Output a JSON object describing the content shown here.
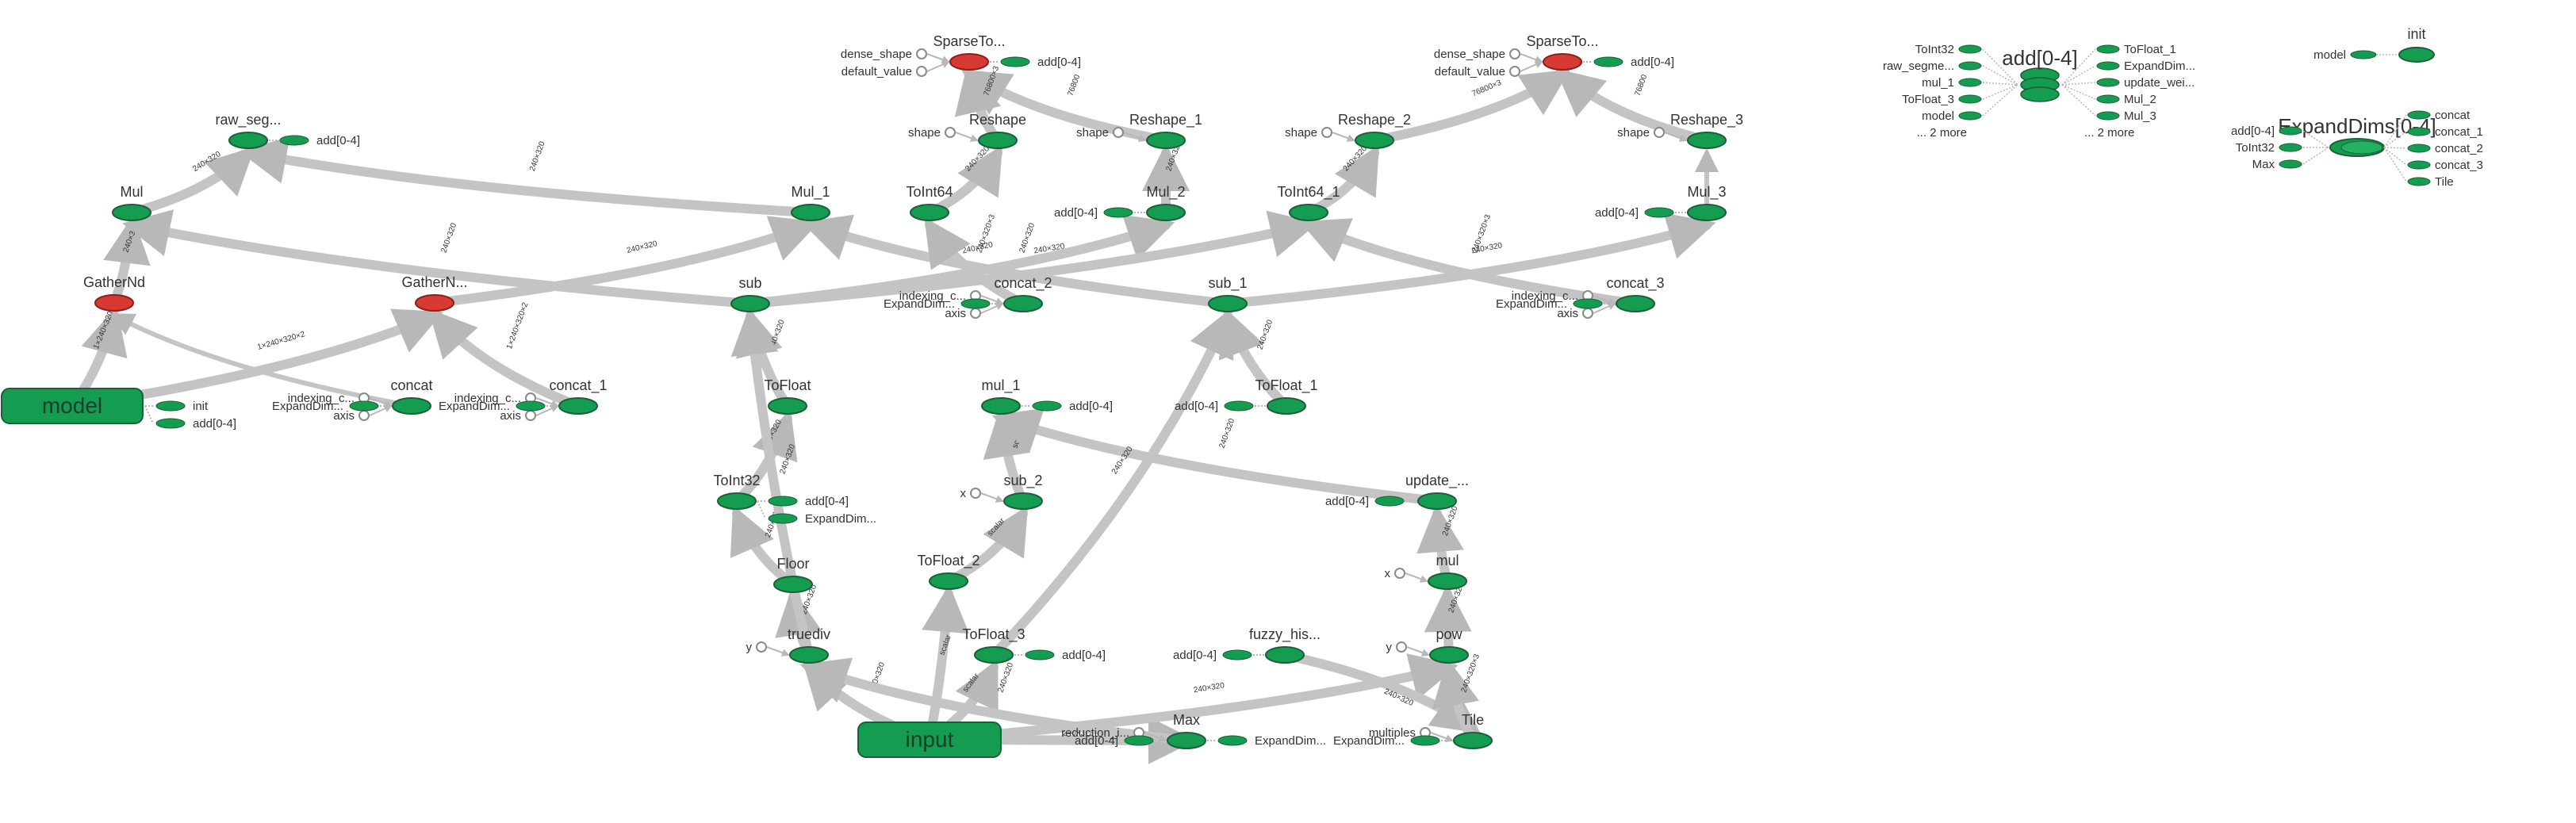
{
  "colors": {
    "op": "#149d51",
    "op_stroke": "#1d5e38",
    "red": "#d63a33",
    "red_stroke": "#8b1f1a",
    "edge": "#c4c4c4",
    "label": "#333333"
  },
  "nodes": [
    {
      "id": "raw_seg",
      "label": "raw_seg...",
      "kind": "op"
    },
    {
      "id": "mul",
      "label": "Mul",
      "kind": "op"
    },
    {
      "id": "gathernd",
      "label": "GatherNd",
      "kind": "red"
    },
    {
      "id": "gathernd_1",
      "label": "GatherN...",
      "kind": "red"
    },
    {
      "id": "model",
      "label": "model",
      "kind": "block"
    },
    {
      "id": "concat",
      "label": "concat",
      "kind": "op"
    },
    {
      "id": "concat_1",
      "label": "concat_1",
      "kind": "op"
    },
    {
      "id": "mul_1cap",
      "label": "Mul_1",
      "kind": "op"
    },
    {
      "id": "sub",
      "label": "sub",
      "kind": "op"
    },
    {
      "id": "tofloat",
      "label": "ToFloat",
      "kind": "op"
    },
    {
      "id": "toint32",
      "label": "ToInt32",
      "kind": "op"
    },
    {
      "id": "floor",
      "label": "Floor",
      "kind": "op"
    },
    {
      "id": "truediv",
      "label": "truediv",
      "kind": "op"
    },
    {
      "id": "input",
      "label": "input",
      "kind": "block"
    },
    {
      "id": "sparseto",
      "label": "SparseTo...",
      "kind": "red"
    },
    {
      "id": "reshape",
      "label": "Reshape",
      "kind": "op"
    },
    {
      "id": "reshape_1",
      "label": "Reshape_1",
      "kind": "op"
    },
    {
      "id": "toint64",
      "label": "ToInt64",
      "kind": "op"
    },
    {
      "id": "mul_2",
      "label": "Mul_2",
      "kind": "op"
    },
    {
      "id": "concat_2",
      "label": "concat_2",
      "kind": "op"
    },
    {
      "id": "mul_1",
      "label": "mul_1",
      "kind": "op"
    },
    {
      "id": "sub_2",
      "label": "sub_2",
      "kind": "op"
    },
    {
      "id": "tofloat_2",
      "label": "ToFloat_2",
      "kind": "op"
    },
    {
      "id": "tofloat_3",
      "label": "ToFloat_3",
      "kind": "op"
    },
    {
      "id": "max",
      "label": "Max",
      "kind": "op"
    },
    {
      "id": "sub_1",
      "label": "sub_1",
      "kind": "op"
    },
    {
      "id": "tofloat_1",
      "label": "ToFloat_1",
      "kind": "op"
    },
    {
      "id": "update",
      "label": "update_...",
      "kind": "op"
    },
    {
      "id": "mul_lc",
      "label": "mul",
      "kind": "op"
    },
    {
      "id": "pow",
      "label": "pow",
      "kind": "op"
    },
    {
      "id": "fuzzy",
      "label": "fuzzy_his...",
      "kind": "op"
    },
    {
      "id": "tile",
      "label": "Tile",
      "kind": "op"
    },
    {
      "id": "sparseto_1",
      "label": "SparseTo...",
      "kind": "red"
    },
    {
      "id": "reshape_2",
      "label": "Reshape_2",
      "kind": "op"
    },
    {
      "id": "reshape_3",
      "label": "Reshape_3",
      "kind": "op"
    },
    {
      "id": "toint64_1",
      "label": "ToInt64_1",
      "kind": "op"
    },
    {
      "id": "mul_3",
      "label": "Mul_3",
      "kind": "op"
    },
    {
      "id": "concat_3",
      "label": "concat_3",
      "kind": "op"
    }
  ],
  "edges": [
    {
      "from": "mul",
      "to": "raw_seg",
      "label": "240×320"
    },
    {
      "from": "mul_1cap",
      "to": "raw_seg",
      "label": "240×320"
    },
    {
      "from": "gathernd",
      "to": "mul",
      "label": "240×320"
    },
    {
      "from": "model",
      "to": "gathernd",
      "label": "1×240×320×2"
    },
    {
      "from": "model",
      "to": "gathernd_1",
      "label": "1×240×320×2"
    },
    {
      "from": "concat",
      "to": "gathernd",
      "label": ""
    },
    {
      "from": "concat_1",
      "to": "gathernd_1",
      "label": "1×240×320×2"
    },
    {
      "from": "gathernd_1",
      "to": "mul_1cap",
      "label": "240×320"
    },
    {
      "from": "sub",
      "to": "mul",
      "label": "240×320"
    },
    {
      "from": "sub",
      "to": "mul_2",
      "label": "240×320"
    },
    {
      "from": "tofloat",
      "to": "sub",
      "label": "240×320"
    },
    {
      "from": "toint32",
      "to": "tofloat",
      "label": "240×320"
    },
    {
      "from": "floor",
      "to": "toint32",
      "label": "240×320"
    },
    {
      "from": "truediv",
      "to": "floor",
      "label": "240×320"
    },
    {
      "from": "input",
      "to": "truediv",
      "label": "240×320"
    },
    {
      "from": "truediv",
      "to": "sub",
      "label": "240×320"
    },
    {
      "from": "input",
      "to": "tofloat_2",
      "label": "scalar"
    },
    {
      "from": "input",
      "to": "tofloat_3",
      "label": "scalar"
    },
    {
      "from": "input",
      "to": "max",
      "label": "240×320"
    },
    {
      "from": "input",
      "to": "pow",
      "label": "240×320"
    },
    {
      "from": "tofloat_2",
      "to": "sub_2",
      "label": "scalar"
    },
    {
      "from": "sub_2",
      "to": "mul_1",
      "label": "scalar"
    },
    {
      "from": "update",
      "to": "mul_1",
      "label": "240×320"
    },
    {
      "from": "mul_lc",
      "to": "update",
      "label": "240×320"
    },
    {
      "from": "pow",
      "to": "mul_lc",
      "label": "240×320"
    },
    {
      "from": "tofloat_3",
      "to": "sub_1",
      "label": "240×320"
    },
    {
      "from": "tofloat_1",
      "to": "sub_1",
      "label": "240×320"
    },
    {
      "from": "sub_1",
      "to": "mul_1cap",
      "label": "240×320"
    },
    {
      "from": "sub_1",
      "to": "mul_3",
      "label": "240×320"
    },
    {
      "from": "sub",
      "to": "toint64_1",
      "label": "240×320"
    },
    {
      "from": "mul_2",
      "to": "reshape_1",
      "label": "240×320"
    },
    {
      "from": "reshape_1",
      "to": "sparseto",
      "label": "76800"
    },
    {
      "from": "toint64",
      "to": "reshape",
      "label": "240×320"
    },
    {
      "from": "reshape",
      "to": "sparseto",
      "label": "76800×3"
    },
    {
      "from": "concat_2",
      "to": "toint64",
      "label": "240×320×3"
    },
    {
      "from": "mul_3",
      "to": "reshape_3",
      "label": ""
    },
    {
      "from": "reshape_3",
      "to": "sparseto_1",
      "label": "76800"
    },
    {
      "from": "toint64_1",
      "to": "reshape_2",
      "label": "240×320"
    },
    {
      "from": "reshape_2",
      "to": "sparseto_1",
      "label": "76800×3"
    },
    {
      "from": "concat_3",
      "to": "toint64_1",
      "label": "240×320×3"
    },
    {
      "from": "fuzzy",
      "to": "tile",
      "label": "240×320"
    },
    {
      "from": "tile",
      "to": "pow",
      "label": "240×320×3"
    },
    {
      "from": "max",
      "to": "truediv",
      "label": "240×320"
    }
  ],
  "constants": [
    {
      "for": "sparseto",
      "label": "dense_shape"
    },
    {
      "for": "sparseto",
      "label": "default_value"
    },
    {
      "for": "reshape",
      "label": "shape"
    },
    {
      "for": "reshape_1",
      "label": "shape"
    },
    {
      "for": "concat",
      "label": "indexing_c..."
    },
    {
      "for": "concat",
      "label": "axis"
    },
    {
      "for": "concat_1",
      "label": "indexing_c..."
    },
    {
      "for": "concat_1",
      "label": "axis"
    },
    {
      "for": "concat_2",
      "label": "indexing_c..."
    },
    {
      "for": "concat_2",
      "label": "axis"
    },
    {
      "for": "truediv",
      "label": "y"
    },
    {
      "for": "sub_2",
      "label": "x"
    },
    {
      "for": "max",
      "label": "reduction_i..."
    },
    {
      "for": "sparseto_1",
      "label": "dense_shape"
    },
    {
      "for": "sparseto_1",
      "label": "default_value"
    },
    {
      "for": "reshape_2",
      "label": "shape"
    },
    {
      "for": "reshape_3",
      "label": "shape"
    },
    {
      "for": "concat_3",
      "label": "indexing_c..."
    },
    {
      "for": "concat_3",
      "label": "axis"
    },
    {
      "for": "mul_lc",
      "label": "x"
    },
    {
      "for": "pow",
      "label": "y"
    },
    {
      "for": "tile",
      "label": "multiples"
    }
  ],
  "refs": [
    {
      "for": "model",
      "label": "init",
      "side": "right"
    },
    {
      "for": "model",
      "label": "add[0-4]",
      "side": "right"
    },
    {
      "for": "raw_seg",
      "label": "add[0-4]",
      "side": "right"
    },
    {
      "for": "concat",
      "label": "ExpandDim...",
      "side": "left"
    },
    {
      "for": "concat_1",
      "label": "ExpandDim...",
      "side": "left"
    },
    {
      "for": "toint32",
      "label": "add[0-4]",
      "side": "right"
    },
    {
      "for": "toint32",
      "label": "ExpandDim...",
      "side": "right"
    },
    {
      "for": "sparseto",
      "label": "add[0-4]",
      "side": "right"
    },
    {
      "for": "mul_2",
      "label": "add[0-4]",
      "side": "left"
    },
    {
      "for": "concat_2",
      "label": "ExpandDim...",
      "side": "left"
    },
    {
      "for": "mul_1",
      "label": "add[0-4]",
      "side": "right"
    },
    {
      "for": "tofloat_3",
      "label": "add[0-4]",
      "side": "right"
    },
    {
      "for": "max",
      "label": "add[0-4]",
      "side": "left"
    },
    {
      "for": "max",
      "label": "ExpandDim...",
      "side": "right"
    },
    {
      "for": "tofloat_1",
      "label": "add[0-4]",
      "side": "left"
    },
    {
      "for": "update",
      "label": "add[0-4]",
      "side": "left"
    },
    {
      "for": "fuzzy",
      "label": "add[0-4]",
      "side": "left"
    },
    {
      "for": "tile",
      "label": "ExpandDim...",
      "side": "left"
    },
    {
      "for": "sparseto_1",
      "label": "add[0-4]",
      "side": "right"
    },
    {
      "for": "mul_3",
      "label": "add[0-4]",
      "side": "left"
    },
    {
      "for": "concat_3",
      "label": "ExpandDim...",
      "side": "left"
    }
  ],
  "aux": {
    "add_group": {
      "label": "add[0-4]",
      "inputs": [
        "ToInt32",
        "raw_segme...",
        "mul_1",
        "ToFloat_3",
        "model",
        "... 2 more"
      ],
      "outputs": [
        "ToFloat_1",
        "ExpandDim...",
        "update_wei...",
        "Mul_2",
        "Mul_3",
        "... 2 more"
      ]
    },
    "init": {
      "label": "init",
      "input": "model"
    },
    "expand_group": {
      "label": "ExpandDims[0-4]",
      "inputs": [
        "add[0-4]",
        "ToInt32",
        "Max"
      ],
      "outputs": [
        "concat",
        "concat_1",
        "concat_2",
        "concat_3",
        "Tile"
      ]
    }
  }
}
